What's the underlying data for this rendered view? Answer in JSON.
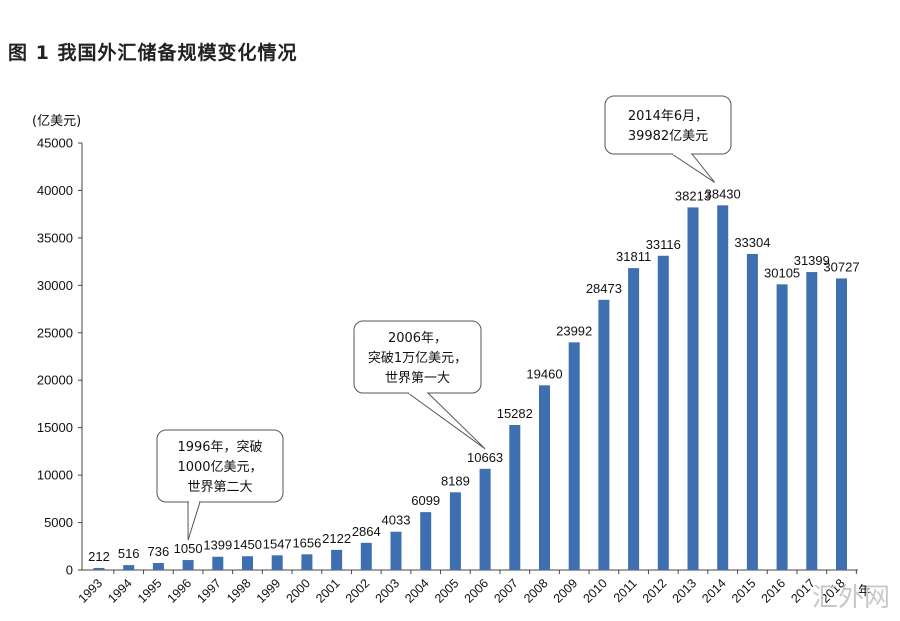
{
  "chart_data": {
    "type": "bar",
    "title": "图 1   我国外汇储备规模变化情况",
    "ylabel": "(亿美元)",
    "xlabel": "年",
    "ylim": [
      0,
      45000
    ],
    "yticks": [
      0,
      5000,
      10000,
      15000,
      20000,
      25000,
      30000,
      35000,
      40000,
      45000
    ],
    "categories": [
      "1993",
      "1994",
      "1995",
      "1996",
      "1997",
      "1998",
      "1999",
      "2000",
      "2001",
      "2002",
      "2003",
      "2004",
      "2005",
      "2006",
      "2007",
      "2008",
      "2009",
      "2010",
      "2011",
      "2012",
      "2013",
      "2014",
      "2015",
      "2016",
      "2017",
      "2018"
    ],
    "values": [
      212,
      516,
      736,
      1050,
      1399,
      1450,
      1547,
      1656,
      2122,
      2864,
      4033,
      6099,
      8189,
      10663,
      15282,
      19460,
      23992,
      28473,
      31811,
      33116,
      38213,
      38430,
      33304,
      30105,
      31399,
      30727
    ],
    "bar_color": "#3e6fb0",
    "annotations": [
      {
        "lines": [
          "1996年，突破",
          "1000亿美元，",
          "世界第二大"
        ],
        "target": "1996"
      },
      {
        "lines": [
          "2006年，",
          "突破1万亿美元，",
          "世界第一大"
        ],
        "target": "2006"
      },
      {
        "lines": [
          "2014年6月，",
          "39982亿美元"
        ],
        "target": "2014"
      }
    ]
  },
  "watermark": "汇外网"
}
